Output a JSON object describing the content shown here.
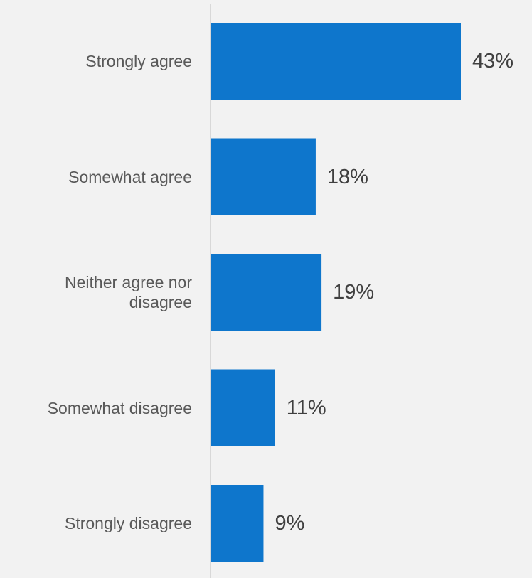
{
  "chart_data": {
    "type": "bar",
    "orientation": "horizontal",
    "categories": [
      "Strongly agree",
      "Somewhat agree",
      "Neither agree nor disagree",
      "Somewhat disagree",
      "Strongly disagree"
    ],
    "values": [
      43,
      18,
      19,
      11,
      9
    ],
    "value_labels": [
      "43%",
      "18%",
      "19%",
      "11%",
      "9%"
    ],
    "title": "",
    "xlabel": "",
    "ylabel": "",
    "xlim": [
      0,
      43
    ],
    "grid": false,
    "legend": "none",
    "colors": {
      "bar": "#0e76cc",
      "axis": "#d0d0d0",
      "background": "#f2f2f2"
    }
  }
}
